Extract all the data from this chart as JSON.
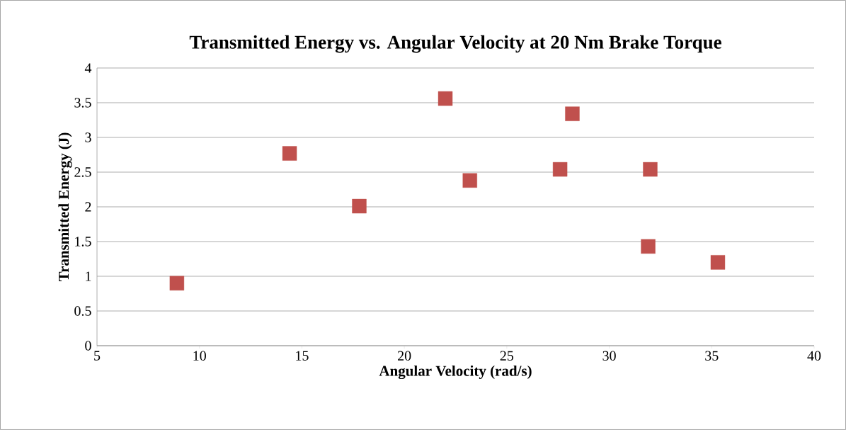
{
  "chart_data": {
    "type": "scatter",
    "title": "Transmitted Energy vs. Angular Velocity at 20 Nm Brake Torque",
    "xlabel": "Angular Velocity (rad/s)",
    "ylabel": "Transmitted Energy (J)",
    "series": [
      {
        "color": "#c0504d",
        "x": [
          8.9,
          14.4,
          17.8,
          22.0,
          23.2,
          27.6,
          28.2,
          32.0,
          31.9,
          35.3
        ],
        "values": [
          0.9,
          2.77,
          2.01,
          3.56,
          2.38,
          2.54,
          3.34,
          2.54,
          1.43,
          1.2
        ]
      }
    ],
    "xlim": [
      5,
      40
    ],
    "xticks": [
      5,
      10,
      15,
      20,
      25,
      30,
      35,
      40
    ],
    "ylim": [
      0,
      4
    ],
    "yticks": [
      0,
      0.5,
      1,
      1.5,
      2,
      2.5,
      3,
      3.5,
      4
    ],
    "grid": "y",
    "marker": "square"
  }
}
